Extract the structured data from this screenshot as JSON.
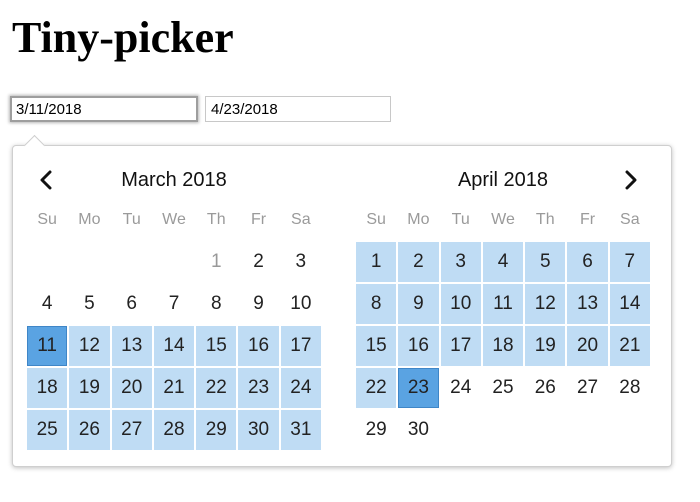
{
  "page": {
    "title": "Tiny-picker"
  },
  "inputs": {
    "start_value": "3/11/2018",
    "end_value": "4/23/2018"
  },
  "colors": {
    "range": "#bfdcf4",
    "endpoint": "#5aa3e2",
    "weekday_label": "#9a9a9a"
  },
  "calendar": {
    "prev_icon": "chevron-left-icon",
    "next_icon": "chevron-right-icon",
    "weekdays": [
      "Su",
      "Mo",
      "Tu",
      "We",
      "Th",
      "Fr",
      "Sa"
    ],
    "months": [
      {
        "title": "March 2018",
        "weeks": [
          [
            {
              "d": ""
            },
            {
              "d": ""
            },
            {
              "d": ""
            },
            {
              "d": ""
            },
            {
              "d": "1",
              "muted": true
            },
            {
              "d": "2"
            },
            {
              "d": "3"
            }
          ],
          [
            {
              "d": "4"
            },
            {
              "d": "5"
            },
            {
              "d": "6"
            },
            {
              "d": "7"
            },
            {
              "d": "8"
            },
            {
              "d": "9"
            },
            {
              "d": "10"
            }
          ],
          [
            {
              "d": "11",
              "state": "endpoint"
            },
            {
              "d": "12",
              "state": "range"
            },
            {
              "d": "13",
              "state": "range"
            },
            {
              "d": "14",
              "state": "range"
            },
            {
              "d": "15",
              "state": "range"
            },
            {
              "d": "16",
              "state": "range"
            },
            {
              "d": "17",
              "state": "range"
            }
          ],
          [
            {
              "d": "18",
              "state": "range"
            },
            {
              "d": "19",
              "state": "range"
            },
            {
              "d": "20",
              "state": "range"
            },
            {
              "d": "21",
              "state": "range"
            },
            {
              "d": "22",
              "state": "range"
            },
            {
              "d": "23",
              "state": "range"
            },
            {
              "d": "24",
              "state": "range"
            }
          ],
          [
            {
              "d": "25",
              "state": "range"
            },
            {
              "d": "26",
              "state": "range"
            },
            {
              "d": "27",
              "state": "range"
            },
            {
              "d": "28",
              "state": "range"
            },
            {
              "d": "29",
              "state": "range"
            },
            {
              "d": "30",
              "state": "range"
            },
            {
              "d": "31",
              "state": "range"
            }
          ]
        ]
      },
      {
        "title": "April 2018",
        "weeks": [
          [
            {
              "d": "1",
              "state": "range"
            },
            {
              "d": "2",
              "state": "range"
            },
            {
              "d": "3",
              "state": "range"
            },
            {
              "d": "4",
              "state": "range"
            },
            {
              "d": "5",
              "state": "range"
            },
            {
              "d": "6",
              "state": "range"
            },
            {
              "d": "7",
              "state": "range"
            }
          ],
          [
            {
              "d": "8",
              "state": "range"
            },
            {
              "d": "9",
              "state": "range"
            },
            {
              "d": "10",
              "state": "range"
            },
            {
              "d": "11",
              "state": "range"
            },
            {
              "d": "12",
              "state": "range"
            },
            {
              "d": "13",
              "state": "range"
            },
            {
              "d": "14",
              "state": "range"
            }
          ],
          [
            {
              "d": "15",
              "state": "range"
            },
            {
              "d": "16",
              "state": "range"
            },
            {
              "d": "17",
              "state": "range"
            },
            {
              "d": "18",
              "state": "range"
            },
            {
              "d": "19",
              "state": "range"
            },
            {
              "d": "20",
              "state": "range"
            },
            {
              "d": "21",
              "state": "range"
            }
          ],
          [
            {
              "d": "22",
              "state": "range"
            },
            {
              "d": "23",
              "state": "endpoint"
            },
            {
              "d": "24"
            },
            {
              "d": "25"
            },
            {
              "d": "26"
            },
            {
              "d": "27"
            },
            {
              "d": "28"
            }
          ],
          [
            {
              "d": "29"
            },
            {
              "d": "30"
            },
            {
              "d": ""
            },
            {
              "d": ""
            },
            {
              "d": ""
            },
            {
              "d": ""
            },
            {
              "d": ""
            }
          ]
        ]
      }
    ]
  }
}
